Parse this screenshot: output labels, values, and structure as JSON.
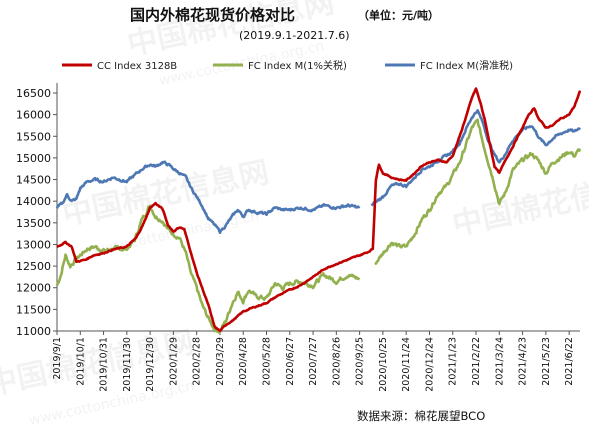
{
  "chart_data": {
    "type": "line",
    "title": "国内外棉花现货价格对比",
    "unit_label": "（单位：元/吨）",
    "subtitle": "(2019.9.1-2021.7.6)",
    "source": "数据来源：棉花展望BCO",
    "watermark": "中国棉花信息网",
    "watermark_url": "www.cottonchina.org.cn",
    "ylim": [
      11000,
      16500
    ],
    "yticks": [
      11000,
      11500,
      12000,
      12500,
      13000,
      13500,
      14000,
      14500,
      15000,
      15500,
      16000,
      16500
    ],
    "xtick_labels": [
      "2019/9/1",
      "2019/10/1",
      "2019/10/31",
      "2019/11/30",
      "2019/12/30",
      "2020/1/29",
      "2020/2/28",
      "2020/3/29",
      "2020/4/28",
      "2020/5/28",
      "2020/6/27",
      "2020/7/27",
      "2020/8/26",
      "2020/9/25",
      "2020/10/25",
      "2020/11/24",
      "2020/12/24",
      "2021/1/23",
      "2021/2/22",
      "2021/3/24",
      "2021/4/23",
      "2021/5/23",
      "2021/6/22"
    ],
    "x_start": "2019-09-01",
    "x_end": "2021-07-06",
    "grid": false,
    "legend_position": "top",
    "series": [
      {
        "name": "CC Index 3128B",
        "color": "#c00000",
        "points": [
          [
            "2019-09-01",
            12950
          ],
          [
            "2019-09-12",
            13050
          ],
          [
            "2019-09-20",
            12950
          ],
          [
            "2019-09-26",
            12600
          ],
          [
            "2019-10-08",
            12650
          ],
          [
            "2019-10-18",
            12750
          ],
          [
            "2019-10-31",
            12800
          ],
          [
            "2019-11-12",
            12880
          ],
          [
            "2019-11-30",
            12950
          ],
          [
            "2019-12-12",
            13150
          ],
          [
            "2019-12-22",
            13500
          ],
          [
            "2019-12-30",
            13850
          ],
          [
            "2020-01-06",
            13950
          ],
          [
            "2020-01-15",
            13820
          ],
          [
            "2020-01-22",
            13450
          ],
          [
            "2020-01-29",
            13300
          ],
          [
            "2020-02-06",
            13400
          ],
          [
            "2020-02-12",
            13350
          ],
          [
            "2020-02-20",
            12850
          ],
          [
            "2020-02-28",
            12350
          ],
          [
            "2020-03-06",
            12000
          ],
          [
            "2020-03-14",
            11600
          ],
          [
            "2020-03-22",
            11100
          ],
          [
            "2020-03-29",
            11000
          ],
          [
            "2020-04-06",
            11150
          ],
          [
            "2020-04-15",
            11250
          ],
          [
            "2020-04-28",
            11450
          ],
          [
            "2020-05-12",
            11550
          ],
          [
            "2020-05-28",
            11650
          ],
          [
            "2020-06-12",
            11820
          ],
          [
            "2020-06-27",
            11950
          ],
          [
            "2020-07-10",
            12050
          ],
          [
            "2020-07-27",
            12250
          ],
          [
            "2020-08-12",
            12450
          ],
          [
            "2020-08-26",
            12550
          ],
          [
            "2020-09-10",
            12650
          ],
          [
            "2020-09-25",
            12750
          ],
          [
            "2020-10-05",
            12820
          ],
          [
            "2020-10-12",
            12900
          ],
          [
            "2020-10-16",
            14500
          ],
          [
            "2020-10-20",
            14850
          ],
          [
            "2020-10-25",
            14650
          ],
          [
            "2020-11-05",
            14550
          ],
          [
            "2020-11-15",
            14500
          ],
          [
            "2020-11-24",
            14480
          ],
          [
            "2020-12-05",
            14650
          ],
          [
            "2020-12-14",
            14820
          ],
          [
            "2020-12-24",
            14900
          ],
          [
            "2021-01-05",
            14950
          ],
          [
            "2021-01-15",
            14900
          ],
          [
            "2021-01-23",
            15050
          ],
          [
            "2021-02-01",
            15500
          ],
          [
            "2021-02-10",
            16000
          ],
          [
            "2021-02-17",
            16400
          ],
          [
            "2021-02-22",
            16600
          ],
          [
            "2021-02-28",
            16250
          ],
          [
            "2021-03-05",
            15900
          ],
          [
            "2021-03-12",
            15300
          ],
          [
            "2021-03-18",
            14800
          ],
          [
            "2021-03-24",
            14650
          ],
          [
            "2021-04-01",
            14950
          ],
          [
            "2021-04-10",
            15250
          ],
          [
            "2021-04-17",
            15500
          ],
          [
            "2021-04-23",
            15700
          ],
          [
            "2021-05-01",
            16000
          ],
          [
            "2021-05-08",
            16150
          ],
          [
            "2021-05-14",
            15900
          ],
          [
            "2021-05-23",
            15700
          ],
          [
            "2021-06-01",
            15750
          ],
          [
            "2021-06-10",
            15900
          ],
          [
            "2021-06-22",
            16000
          ],
          [
            "2021-06-29",
            16200
          ],
          [
            "2021-07-06",
            16550
          ]
        ]
      },
      {
        "name": "FC Index M(1%关税)",
        "color": "#92b04e",
        "points": [
          [
            "2019-09-01",
            12050
          ],
          [
            "2019-09-06",
            12300
          ],
          [
            "2019-09-12",
            12750
          ],
          [
            "2019-09-18",
            12500
          ],
          [
            "2019-09-25",
            12650
          ],
          [
            "2019-10-01",
            12750
          ],
          [
            "2019-10-10",
            12900
          ],
          [
            "2019-10-20",
            12950
          ],
          [
            "2019-10-31",
            12850
          ],
          [
            "2019-11-12",
            12900
          ],
          [
            "2019-11-30",
            12900
          ],
          [
            "2019-12-10",
            13100
          ],
          [
            "2019-12-20",
            13600
          ],
          [
            "2019-12-30",
            13900
          ],
          [
            "2020-01-06",
            13650
          ],
          [
            "2020-01-15",
            13550
          ],
          [
            "2020-01-22",
            13350
          ],
          [
            "2020-01-29",
            13250
          ],
          [
            "2020-02-06",
            13150
          ],
          [
            "2020-02-14",
            12800
          ],
          [
            "2020-02-21",
            12300
          ],
          [
            "2020-02-28",
            12000
          ],
          [
            "2020-03-06",
            11600
          ],
          [
            "2020-03-14",
            11300
          ],
          [
            "2020-03-22",
            11050
          ],
          [
            "2020-03-29",
            11000
          ],
          [
            "2020-04-06",
            11250
          ],
          [
            "2020-04-14",
            11650
          ],
          [
            "2020-04-21",
            11900
          ],
          [
            "2020-04-28",
            11700
          ],
          [
            "2020-05-05",
            11950
          ],
          [
            "2020-05-14",
            11800
          ],
          [
            "2020-05-28",
            11750
          ],
          [
            "2020-06-08",
            12100
          ],
          [
            "2020-06-18",
            12000
          ],
          [
            "2020-06-27",
            12100
          ],
          [
            "2020-07-10",
            12150
          ],
          [
            "2020-07-27",
            12050
          ],
          [
            "2020-08-10",
            12300
          ],
          [
            "2020-08-26",
            12150
          ],
          [
            "2020-09-10",
            12300
          ],
          [
            "2020-09-25",
            12200
          ],
          [
            "2020-10-15",
            12550
          ],
          [
            "2020-10-25",
            12800
          ],
          [
            "2020-11-05",
            13050
          ],
          [
            "2020-11-15",
            12950
          ],
          [
            "2020-11-24",
            12950
          ],
          [
            "2020-12-05",
            13250
          ],
          [
            "2020-12-15",
            13600
          ],
          [
            "2020-12-24",
            13800
          ],
          [
            "2021-01-05",
            14200
          ],
          [
            "2021-01-15",
            14350
          ],
          [
            "2021-01-23",
            14600
          ],
          [
            "2021-02-01",
            14900
          ],
          [
            "2021-02-10",
            15350
          ],
          [
            "2021-02-17",
            15700
          ],
          [
            "2021-02-24",
            15850
          ],
          [
            "2021-03-03",
            15350
          ],
          [
            "2021-03-10",
            14900
          ],
          [
            "2021-03-17",
            14450
          ],
          [
            "2021-03-24",
            13950
          ],
          [
            "2021-04-01",
            14200
          ],
          [
            "2021-04-10",
            14700
          ],
          [
            "2021-04-23",
            14950
          ],
          [
            "2021-05-05",
            15100
          ],
          [
            "2021-05-15",
            14900
          ],
          [
            "2021-05-23",
            14650
          ],
          [
            "2021-06-01",
            14900
          ],
          [
            "2021-06-10",
            15000
          ],
          [
            "2021-06-22",
            15150
          ],
          [
            "2021-06-29",
            15050
          ],
          [
            "2021-07-06",
            15200
          ]
        ]
      },
      {
        "name": "FC Index M(滑准税)",
        "color": "#4e78b4",
        "points": [
          [
            "2019-09-01",
            13850
          ],
          [
            "2019-09-08",
            13950
          ],
          [
            "2019-09-14",
            14150
          ],
          [
            "2019-09-20",
            14000
          ],
          [
            "2019-09-26",
            14050
          ],
          [
            "2019-10-01",
            14300
          ],
          [
            "2019-10-10",
            14450
          ],
          [
            "2019-10-20",
            14500
          ],
          [
            "2019-10-31",
            14450
          ],
          [
            "2019-11-12",
            14550
          ],
          [
            "2019-11-30",
            14450
          ],
          [
            "2019-12-10",
            14600
          ],
          [
            "2019-12-20",
            14750
          ],
          [
            "2019-12-30",
            14850
          ],
          [
            "2020-01-06",
            14800
          ],
          [
            "2020-01-15",
            14900
          ],
          [
            "2020-01-22",
            14850
          ],
          [
            "2020-01-29",
            14750
          ],
          [
            "2020-02-06",
            14650
          ],
          [
            "2020-02-14",
            14550
          ],
          [
            "2020-02-21",
            14300
          ],
          [
            "2020-02-28",
            14100
          ],
          [
            "2020-03-06",
            13900
          ],
          [
            "2020-03-14",
            13600
          ],
          [
            "2020-03-22",
            13450
          ],
          [
            "2020-03-29",
            13300
          ],
          [
            "2020-04-06",
            13450
          ],
          [
            "2020-04-14",
            13650
          ],
          [
            "2020-04-21",
            13800
          ],
          [
            "2020-04-28",
            13650
          ],
          [
            "2020-05-05",
            13800
          ],
          [
            "2020-05-14",
            13750
          ],
          [
            "2020-05-28",
            13700
          ],
          [
            "2020-06-08",
            13850
          ],
          [
            "2020-06-18",
            13800
          ],
          [
            "2020-06-27",
            13800
          ],
          [
            "2020-07-10",
            13850
          ],
          [
            "2020-07-27",
            13800
          ],
          [
            "2020-08-10",
            13900
          ],
          [
            "2020-08-26",
            13850
          ],
          [
            "2020-09-10",
            13900
          ],
          [
            "2020-09-25",
            13850
          ],
          [
            "2020-10-10",
            13900
          ],
          [
            "2020-10-25",
            14100
          ],
          [
            "2020-11-05",
            14350
          ],
          [
            "2020-11-15",
            14400
          ],
          [
            "2020-11-24",
            14350
          ],
          [
            "2020-12-05",
            14550
          ],
          [
            "2020-12-15",
            14750
          ],
          [
            "2020-12-24",
            14800
          ],
          [
            "2021-01-05",
            14950
          ],
          [
            "2021-01-15",
            15050
          ],
          [
            "2021-01-23",
            15150
          ],
          [
            "2021-02-01",
            15350
          ],
          [
            "2021-02-10",
            15700
          ],
          [
            "2021-02-17",
            15950
          ],
          [
            "2021-02-24",
            16100
          ],
          [
            "2021-03-03",
            15800
          ],
          [
            "2021-03-10",
            15400
          ],
          [
            "2021-03-17",
            15100
          ],
          [
            "2021-03-24",
            14900
          ],
          [
            "2021-04-01",
            15100
          ],
          [
            "2021-04-10",
            15400
          ],
          [
            "2021-04-23",
            15650
          ],
          [
            "2021-05-05",
            15750
          ],
          [
            "2021-05-15",
            15450
          ],
          [
            "2021-05-23",
            15300
          ],
          [
            "2021-06-01",
            15450
          ],
          [
            "2021-06-10",
            15550
          ],
          [
            "2021-06-22",
            15650
          ],
          [
            "2021-06-29",
            15600
          ],
          [
            "2021-07-06",
            15700
          ]
        ]
      }
    ],
    "gaps": [
      {
        "series": "FC Index M(1%关税)",
        "from": "2020-09-25",
        "to": "2020-10-15"
      },
      {
        "series": "FC Index M(滑准税)",
        "from": "2020-09-25",
        "to": "2020-10-10"
      }
    ]
  }
}
